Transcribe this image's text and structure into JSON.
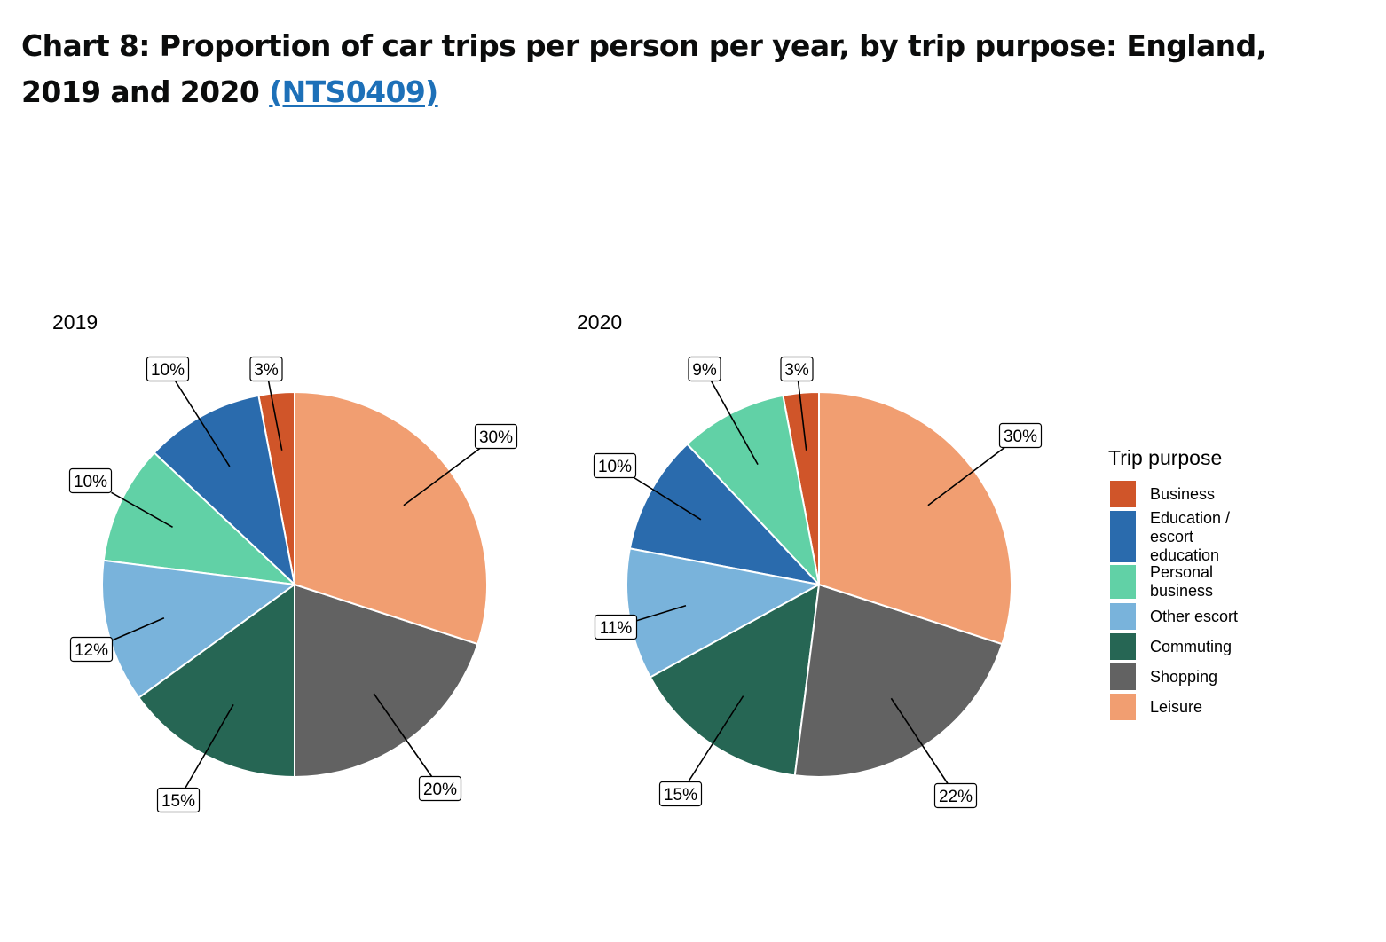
{
  "page": {
    "title": "Chart 8: Proportion of car trips per person per year, by trip purpose: England, 2019 and 2020",
    "link_text": "(NTS0409)"
  },
  "colors": {
    "Business": "#d05529",
    "Education / escort education": "#2a6bad",
    "Personal business": "#61d1a6",
    "Other escort": "#79b3db",
    "Commuting": "#266654",
    "Shopping": "#626262",
    "Leisure": "#f19e71"
  },
  "chart_data": [
    {
      "type": "pie",
      "title": "2019",
      "categories": [
        "Business",
        "Education / escort education",
        "Personal business",
        "Other escort",
        "Commuting",
        "Shopping",
        "Leisure"
      ],
      "values": [
        3,
        10,
        10,
        12,
        15,
        20,
        30
      ],
      "labels": [
        "3%",
        "10%",
        "10%",
        "12%",
        "15%",
        "20%",
        "30%"
      ],
      "direction": "counterclockwise from 12 o'clock"
    },
    {
      "type": "pie",
      "title": "2020",
      "categories": [
        "Business",
        "Personal business",
        "Education / escort education",
        "Other escort",
        "Commuting",
        "Shopping",
        "Leisure"
      ],
      "values": [
        3,
        9,
        10,
        11,
        15,
        22,
        30
      ],
      "labels": [
        "3%",
        "9%",
        "10%",
        "11%",
        "15%",
        "22%",
        "30%"
      ],
      "direction": "counterclockwise from 12 o'clock"
    }
  ],
  "legend": {
    "title": "Trip purpose",
    "items": [
      {
        "name": "Business",
        "lines": [
          "Business"
        ]
      },
      {
        "name": "Education / escort education",
        "lines": [
          "Education /",
          "escort",
          "education"
        ]
      },
      {
        "name": "Personal business",
        "lines": [
          "Personal",
          "business"
        ]
      },
      {
        "name": "Other escort",
        "lines": [
          "Other escort"
        ]
      },
      {
        "name": "Commuting",
        "lines": [
          "Commuting"
        ]
      },
      {
        "name": "Shopping",
        "lines": [
          "Shopping"
        ]
      },
      {
        "name": "Leisure",
        "lines": [
          "Leisure"
        ]
      }
    ]
  }
}
